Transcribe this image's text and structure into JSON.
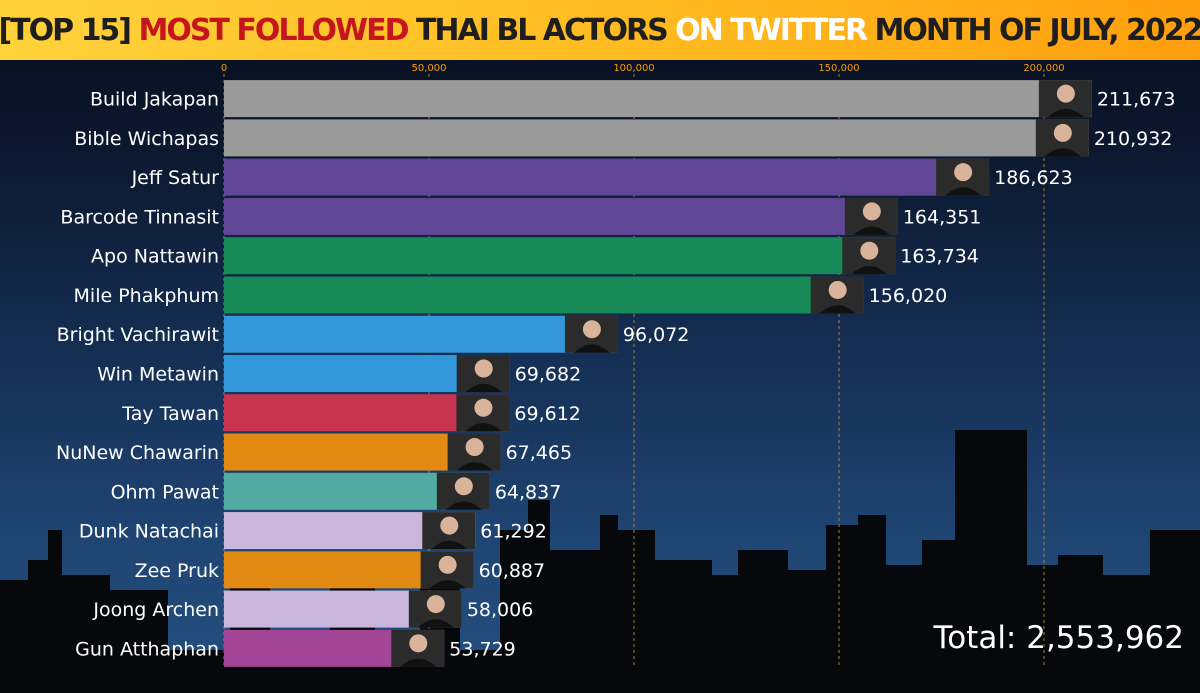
{
  "title": {
    "part1": "[TOP 15] ",
    "part2": "MOST FOLLOWED",
    "part3": " THAI BL ACTORS ",
    "part4": "ON TWITTER",
    "part5": " MONTH OF JULY, 2022"
  },
  "total_label": "Total: 2,553,962",
  "colors": {
    "gray": "#9a9a9a",
    "purple": "#5f4795",
    "green": "#178a57",
    "blue": "#3298db",
    "red": "#c8334f",
    "orange": "#e38a14",
    "teal": "#51aba3",
    "lavender": "#c9b6de",
    "magenta": "#a24596"
  },
  "chart_data": {
    "type": "bar",
    "orientation": "horizontal",
    "title": "[TOP 15] MOST FOLLOWED THAI BL ACTORS ON TWITTER MONTH OF JULY, 2022",
    "xlim": [
      0,
      220000
    ],
    "x_ticks": [
      0,
      50000,
      100000,
      150000,
      200000
    ],
    "x_tick_labels": [
      "0",
      "50,000",
      "100,000",
      "150,000",
      "200,000"
    ],
    "grid": "vertical dashed",
    "categories": [
      "Build Jakapan",
      "Bible Wichapas",
      "Jeff Satur",
      "Barcode Tinnasit",
      "Apo Nattawin",
      "Mile Phakphum",
      "Bright Vachirawit",
      "Win Metawin",
      "Tay Tawan",
      "NuNew Chawarin",
      "Ohm Pawat",
      "Dunk Natachai",
      "Zee Pruk",
      "Joong Archen",
      "Gun Atthaphan"
    ],
    "values": [
      211673,
      210932,
      186623,
      164351,
      163734,
      156020,
      96072,
      69682,
      69612,
      67465,
      64837,
      61292,
      60887,
      58006,
      53729
    ],
    "value_labels": [
      "211,673",
      "210,932",
      "186,623",
      "164,351",
      "163,734",
      "156,020",
      "96,072",
      "69,682",
      "69,612",
      "67,465",
      "64,837",
      "61,292",
      "60,887",
      "58,006",
      "53,729"
    ],
    "bar_colors": [
      "#9a9a9a",
      "#9a9a9a",
      "#5f4795",
      "#5f4795",
      "#178a57",
      "#178a57",
      "#3298db",
      "#3298db",
      "#c8334f",
      "#e38a14",
      "#51aba3",
      "#c9b6de",
      "#e38a14",
      "#c9b6de",
      "#a24596"
    ]
  }
}
